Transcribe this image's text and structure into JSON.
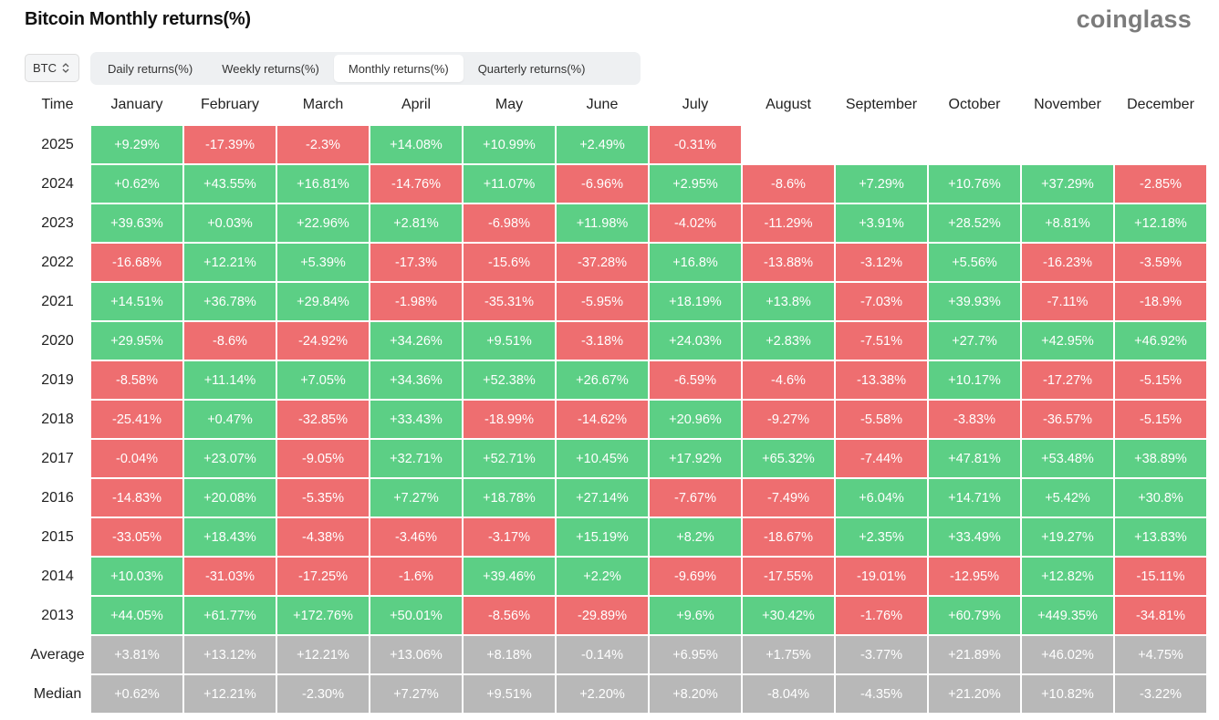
{
  "title": "Bitcoin Monthly returns(%)",
  "logo": "coinglass",
  "asset_select": {
    "value": "BTC",
    "icon": "updown-chevron-icon"
  },
  "tabs": [
    {
      "label": "Daily returns(%)",
      "active": false
    },
    {
      "label": "Weekly returns(%)",
      "active": false
    },
    {
      "label": "Monthly returns(%)",
      "active": true
    },
    {
      "label": "Quarterly returns(%)",
      "active": false
    }
  ],
  "colors": {
    "positive": "#5ccf85",
    "negative": "#ee6e70",
    "stat": "#b8b8b8"
  },
  "table": {
    "time_header": "Time",
    "months": [
      "January",
      "February",
      "March",
      "April",
      "May",
      "June",
      "July",
      "August",
      "September",
      "October",
      "November",
      "December"
    ],
    "rows": [
      {
        "year": "2025",
        "values": [
          "+9.29%",
          "-17.39%",
          "-2.3%",
          "+14.08%",
          "+10.99%",
          "+2.49%",
          "-0.31%",
          "",
          "",
          "",
          "",
          ""
        ]
      },
      {
        "year": "2024",
        "values": [
          "+0.62%",
          "+43.55%",
          "+16.81%",
          "-14.76%",
          "+11.07%",
          "-6.96%",
          "+2.95%",
          "-8.6%",
          "+7.29%",
          "+10.76%",
          "+37.29%",
          "-2.85%"
        ]
      },
      {
        "year": "2023",
        "values": [
          "+39.63%",
          "+0.03%",
          "+22.96%",
          "+2.81%",
          "-6.98%",
          "+11.98%",
          "-4.02%",
          "-11.29%",
          "+3.91%",
          "+28.52%",
          "+8.81%",
          "+12.18%"
        ]
      },
      {
        "year": "2022",
        "values": [
          "-16.68%",
          "+12.21%",
          "+5.39%",
          "-17.3%",
          "-15.6%",
          "-37.28%",
          "+16.8%",
          "-13.88%",
          "-3.12%",
          "+5.56%",
          "-16.23%",
          "-3.59%"
        ]
      },
      {
        "year": "2021",
        "values": [
          "+14.51%",
          "+36.78%",
          "+29.84%",
          "-1.98%",
          "-35.31%",
          "-5.95%",
          "+18.19%",
          "+13.8%",
          "-7.03%",
          "+39.93%",
          "-7.11%",
          "-18.9%"
        ]
      },
      {
        "year": "2020",
        "values": [
          "+29.95%",
          "-8.6%",
          "-24.92%",
          "+34.26%",
          "+9.51%",
          "-3.18%",
          "+24.03%",
          "+2.83%",
          "-7.51%",
          "+27.7%",
          "+42.95%",
          "+46.92%"
        ]
      },
      {
        "year": "2019",
        "values": [
          "-8.58%",
          "+11.14%",
          "+7.05%",
          "+34.36%",
          "+52.38%",
          "+26.67%",
          "-6.59%",
          "-4.6%",
          "-13.38%",
          "+10.17%",
          "-17.27%",
          "-5.15%"
        ]
      },
      {
        "year": "2018",
        "values": [
          "-25.41%",
          "+0.47%",
          "-32.85%",
          "+33.43%",
          "-18.99%",
          "-14.62%",
          "+20.96%",
          "-9.27%",
          "-5.58%",
          "-3.83%",
          "-36.57%",
          "-5.15%"
        ]
      },
      {
        "year": "2017",
        "values": [
          "-0.04%",
          "+23.07%",
          "-9.05%",
          "+32.71%",
          "+52.71%",
          "+10.45%",
          "+17.92%",
          "+65.32%",
          "-7.44%",
          "+47.81%",
          "+53.48%",
          "+38.89%"
        ]
      },
      {
        "year": "2016",
        "values": [
          "-14.83%",
          "+20.08%",
          "-5.35%",
          "+7.27%",
          "+18.78%",
          "+27.14%",
          "-7.67%",
          "-7.49%",
          "+6.04%",
          "+14.71%",
          "+5.42%",
          "+30.8%"
        ]
      },
      {
        "year": "2015",
        "values": [
          "-33.05%",
          "+18.43%",
          "-4.38%",
          "-3.46%",
          "-3.17%",
          "+15.19%",
          "+8.2%",
          "-18.67%",
          "+2.35%",
          "+33.49%",
          "+19.27%",
          "+13.83%"
        ]
      },
      {
        "year": "2014",
        "values": [
          "+10.03%",
          "-31.03%",
          "-17.25%",
          "-1.6%",
          "+39.46%",
          "+2.2%",
          "-9.69%",
          "-17.55%",
          "-19.01%",
          "-12.95%",
          "+12.82%",
          "-15.11%"
        ]
      },
      {
        "year": "2013",
        "values": [
          "+44.05%",
          "+61.77%",
          "+172.76%",
          "+50.01%",
          "-8.56%",
          "-29.89%",
          "+9.6%",
          "+30.42%",
          "-1.76%",
          "+60.79%",
          "+449.35%",
          "-34.81%"
        ]
      }
    ],
    "stats": [
      {
        "label": "Average",
        "values": [
          "+3.81%",
          "+13.12%",
          "+12.21%",
          "+13.06%",
          "+8.18%",
          "-0.14%",
          "+6.95%",
          "+1.75%",
          "-3.77%",
          "+21.89%",
          "+46.02%",
          "+4.75%"
        ]
      },
      {
        "label": "Median",
        "values": [
          "+0.62%",
          "+12.21%",
          "-2.30%",
          "+7.27%",
          "+9.51%",
          "+2.20%",
          "+8.20%",
          "-8.04%",
          "-4.35%",
          "+21.20%",
          "+10.82%",
          "-3.22%"
        ]
      }
    ]
  }
}
